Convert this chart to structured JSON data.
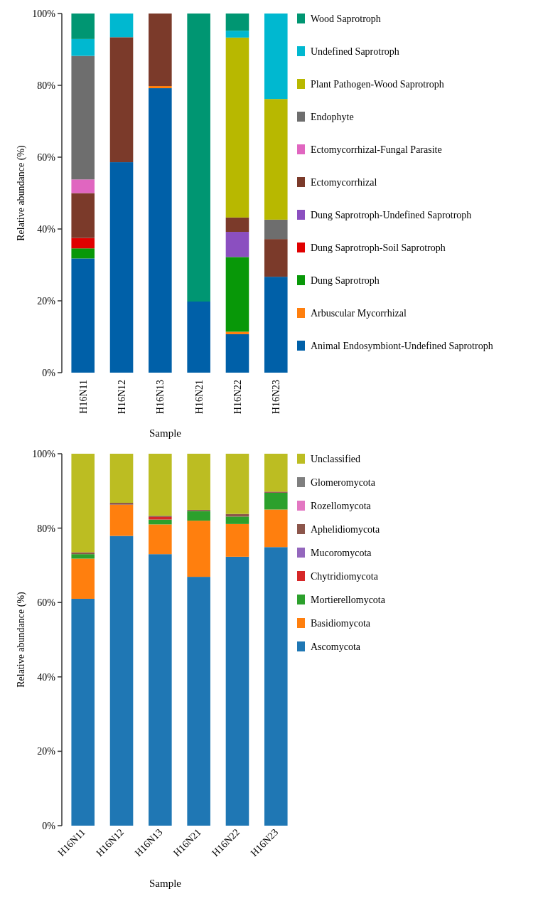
{
  "chart_data": [
    {
      "type": "bar",
      "stacked": true,
      "xlabel": "Sample",
      "ylabel": "Relative abundance (%)",
      "categories": [
        "H16N11",
        "H16N12",
        "H16N13",
        "H16N21",
        "H16N22",
        "H16N23"
      ],
      "ylim": [
        0,
        100
      ],
      "yticks": [
        {
          "value": 0,
          "label": "0%"
        },
        {
          "value": 20,
          "label": "20%"
        },
        {
          "value": 40,
          "label": "40%"
        },
        {
          "value": 60,
          "label": "60%"
        },
        {
          "value": 80,
          "label": "80%"
        },
        {
          "value": 100,
          "label": "100%"
        }
      ],
      "legend": "right",
      "grid": false,
      "series": [
        {
          "name": "Animal Endosymbiont-Undefined Saprotroph",
          "color": "#0060a8",
          "values": [
            31.8,
            58.6,
            79.2,
            19.8,
            10.7,
            26.7
          ]
        },
        {
          "name": "Arbuscular Mycorrhizal",
          "color": "#ff7f0e",
          "values": [
            0,
            0,
            0.6,
            0,
            0.7,
            0
          ]
        },
        {
          "name": "Dung Saprotroph",
          "color": "#089808",
          "values": [
            2.8,
            0,
            0,
            0,
            20.8,
            0
          ]
        },
        {
          "name": "Dung Saprotroph-Soil Saprotroph",
          "color": "#e00000",
          "values": [
            2.9,
            0,
            0,
            0,
            0,
            0
          ]
        },
        {
          "name": "Dung Saprotroph-Undefined Saprotroph",
          "color": "#8b4fc0",
          "values": [
            0,
            0,
            0,
            0,
            7.0,
            0
          ]
        },
        {
          "name": "Ectomycorrhizal",
          "color": "#7b3a2a",
          "values": [
            12.5,
            34.8,
            20.2,
            0,
            4.0,
            10.5
          ]
        },
        {
          "name": "Ectomycorrhizal-Fungal Parasite",
          "color": "#e066c0",
          "values": [
            3.8,
            0,
            0,
            0,
            0,
            0
          ]
        },
        {
          "name": "Endophyte",
          "color": "#6e6e6e",
          "values": [
            34.4,
            0,
            0,
            0,
            0,
            5.4
          ]
        },
        {
          "name": "Plant Pathogen-Wood Saprotroph",
          "color": "#b8b800",
          "values": [
            0,
            0,
            0,
            0,
            50.1,
            33.6
          ]
        },
        {
          "name": "Undefined Saprotroph",
          "color": "#00b8d0",
          "values": [
            4.7,
            6.6,
            0,
            0,
            1.9,
            23.8
          ]
        },
        {
          "name": "Wood Saprotroph",
          "color": "#009672",
          "values": [
            7.1,
            0,
            0,
            80.2,
            4.8,
            0
          ]
        }
      ]
    },
    {
      "type": "bar",
      "stacked": true,
      "xlabel": "Sample",
      "ylabel": "Relative abundance (%)",
      "categories": [
        "H16N11",
        "H16N12",
        "H16N13",
        "H16N21",
        "H16N22",
        "H16N23"
      ],
      "ylim": [
        0,
        100
      ],
      "yticks": [
        {
          "value": 0,
          "label": "0%"
        },
        {
          "value": 20,
          "label": "20%"
        },
        {
          "value": 40,
          "label": "40%"
        },
        {
          "value": 60,
          "label": "60%"
        },
        {
          "value": 80,
          "label": "80%"
        },
        {
          "value": 100,
          "label": "100%"
        }
      ],
      "legend": "right",
      "grid": false,
      "series": [
        {
          "name": "Ascomycota",
          "color": "#1f77b4",
          "values": [
            61.0,
            77.9,
            73.0,
            66.9,
            72.3,
            74.9
          ]
        },
        {
          "name": "Basidiomycota",
          "color": "#ff7f0e",
          "values": [
            10.8,
            8.4,
            8.0,
            15.1,
            8.8,
            10.1
          ]
        },
        {
          "name": "Mortierellomycota",
          "color": "#2ca02c",
          "values": [
            1.2,
            0,
            1.3,
            2.6,
            2.0,
            4.5
          ]
        },
        {
          "name": "Chytridiomycota",
          "color": "#d62728",
          "values": [
            0,
            0,
            0.7,
            0,
            0,
            0
          ]
        },
        {
          "name": "Mucoromycota",
          "color": "#9467bd",
          "values": [
            0,
            0,
            0,
            0,
            0,
            0
          ]
        },
        {
          "name": "Aphelidiomycota",
          "color": "#8c564b",
          "values": [
            0.5,
            0.5,
            0.3,
            0.3,
            0.7,
            0.3
          ]
        },
        {
          "name": "Rozellomycota",
          "color": "#e377c2",
          "values": [
            0,
            0,
            0,
            0,
            0,
            0
          ]
        },
        {
          "name": "Glomeromycota",
          "color": "#7f7f7f",
          "values": [
            0,
            0,
            0,
            0,
            0,
            0
          ]
        },
        {
          "name": "Unclassified",
          "color": "#bcbd22",
          "values": [
            26.5,
            13.2,
            16.7,
            15.1,
            16.2,
            10.2
          ]
        }
      ]
    }
  ]
}
